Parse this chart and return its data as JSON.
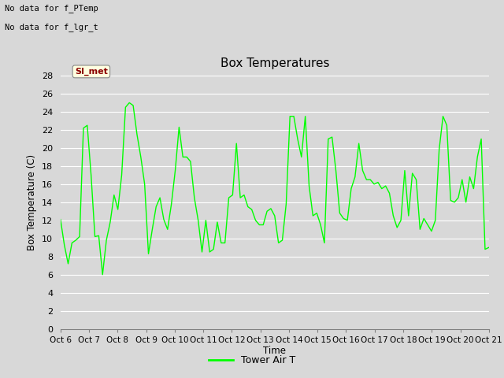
{
  "title": "Box Temperatures",
  "ylabel": "Box Temperature (C)",
  "xlabel": "Time",
  "no_data_text1": "No data for f_PTemp",
  "no_data_text2": "No data for f_lgr_t",
  "si_met_label": "SI_met",
  "legend_label": "Tower Air T",
  "line_color": "#00FF00",
  "background_color": "#D8D8D8",
  "plot_bg_color": "#D8D8D8",
  "ylim": [
    0,
    28
  ],
  "yticks": [
    0,
    2,
    4,
    6,
    8,
    10,
    12,
    14,
    16,
    18,
    20,
    22,
    24,
    26,
    28
  ],
  "x_tick_labels": [
    "Oct 6",
    "Oct 7",
    "Oct 8",
    "Oct 9",
    "Oct 10",
    "Oct 11",
    "Oct 12",
    "Oct 13",
    "Oct 14",
    "Oct 15",
    "Oct 16",
    "Oct 17",
    "Oct 18",
    "Oct 19",
    "Oct 20",
    "Oct 21"
  ],
  "tower_air_t": [
    12.1,
    9.3,
    7.2,
    9.5,
    9.8,
    10.2,
    22.2,
    22.5,
    17.0,
    10.2,
    10.3,
    6.0,
    9.8,
    11.8,
    14.8,
    13.2,
    17.0,
    24.5,
    25.0,
    24.7,
    21.5,
    19.0,
    16.0,
    8.3,
    11.0,
    13.5,
    14.5,
    12.1,
    11.0,
    13.8,
    17.5,
    22.3,
    19.0,
    19.0,
    18.5,
    14.5,
    12.0,
    8.5,
    12.0,
    8.5,
    8.8,
    11.8,
    9.5,
    9.5,
    14.5,
    14.8,
    20.5,
    14.5,
    14.8,
    13.5,
    13.2,
    12.0,
    11.5,
    11.5,
    13.0,
    13.3,
    12.5,
    9.5,
    9.8,
    13.8,
    23.5,
    23.5,
    21.0,
    19.0,
    23.5,
    15.8,
    12.5,
    12.8,
    11.5,
    9.5,
    21.0,
    21.2,
    17.5,
    12.8,
    12.2,
    12.0,
    15.5,
    16.8,
    20.5,
    17.5,
    16.5,
    16.5,
    16.0,
    16.2,
    15.5,
    15.8,
    15.0,
    12.5,
    11.2,
    12.0,
    17.5,
    12.5,
    17.2,
    16.5,
    11.0,
    12.2,
    11.5,
    10.8,
    12.0,
    19.8,
    23.5,
    22.5,
    14.2,
    14.0,
    14.5,
    16.5,
    14.0,
    16.8,
    15.5,
    19.0,
    21.0,
    8.8,
    9.0
  ]
}
